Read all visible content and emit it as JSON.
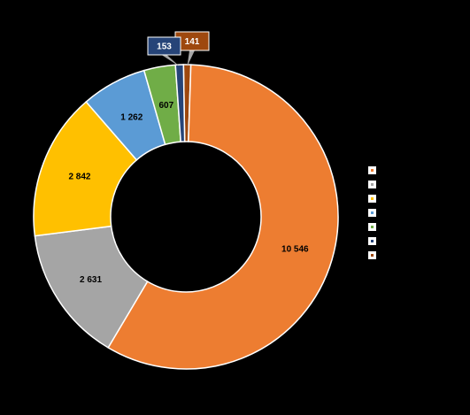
{
  "chart_data": {
    "type": "pie",
    "donut": true,
    "title": "",
    "legend_position": "right",
    "slices": [
      {
        "name": "",
        "value": 141,
        "label": "141",
        "color": "#9E480E"
      },
      {
        "name": "",
        "value": 10546,
        "label": "10 546",
        "color": "#ED7D31"
      },
      {
        "name": "",
        "value": 2631,
        "label": "2 631",
        "color": "#A5A5A5"
      },
      {
        "name": "",
        "value": 2842,
        "label": "2 842",
        "color": "#FFC000"
      },
      {
        "name": "",
        "value": 1262,
        "label": "1 262",
        "color": "#5B9BD5"
      },
      {
        "name": "",
        "value": 607,
        "label": "607",
        "color": "#70AD47"
      },
      {
        "name": "",
        "value": 153,
        "label": "153",
        "color": "#264478"
      }
    ],
    "legend_order": [
      1,
      2,
      3,
      4,
      5,
      6,
      0
    ]
  }
}
